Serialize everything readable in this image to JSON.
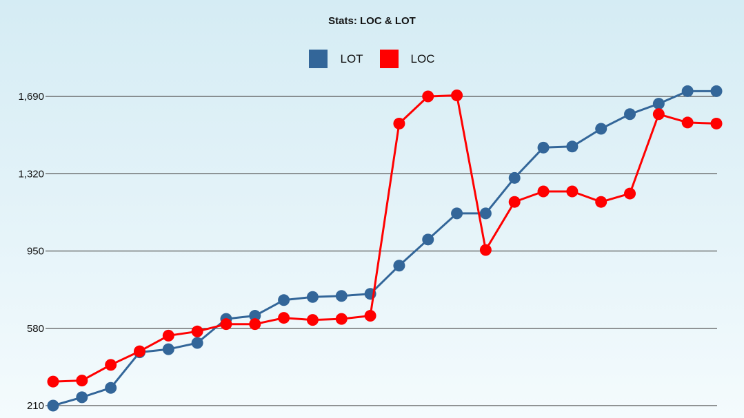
{
  "chart_data": {
    "type": "line",
    "title": "Stats: LOC & LOT",
    "xlabel": "",
    "ylabel": "",
    "ylim": [
      210,
      1690
    ],
    "yticks": [
      210,
      580,
      950,
      1320,
      1690
    ],
    "ytick_labels": [
      "210",
      "580",
      "950",
      "1,320",
      "1,690"
    ],
    "grid": true,
    "legend_position": "top-center",
    "series": [
      {
        "name": "LOT",
        "color": "#336699",
        "values": [
          210,
          250,
          295,
          465,
          480,
          510,
          625,
          640,
          715,
          730,
          735,
          745,
          880,
          1005,
          1130,
          1130,
          1300,
          1445,
          1450,
          1535,
          1605,
          1655,
          1715,
          1715
        ]
      },
      {
        "name": "LOC",
        "color": "#ff0000",
        "values": [
          325,
          330,
          405,
          470,
          545,
          565,
          600,
          600,
          630,
          620,
          625,
          640,
          1560,
          1690,
          1695,
          955,
          1185,
          1235,
          1235,
          1185,
          1225,
          1605,
          1565,
          1560
        ]
      }
    ]
  }
}
